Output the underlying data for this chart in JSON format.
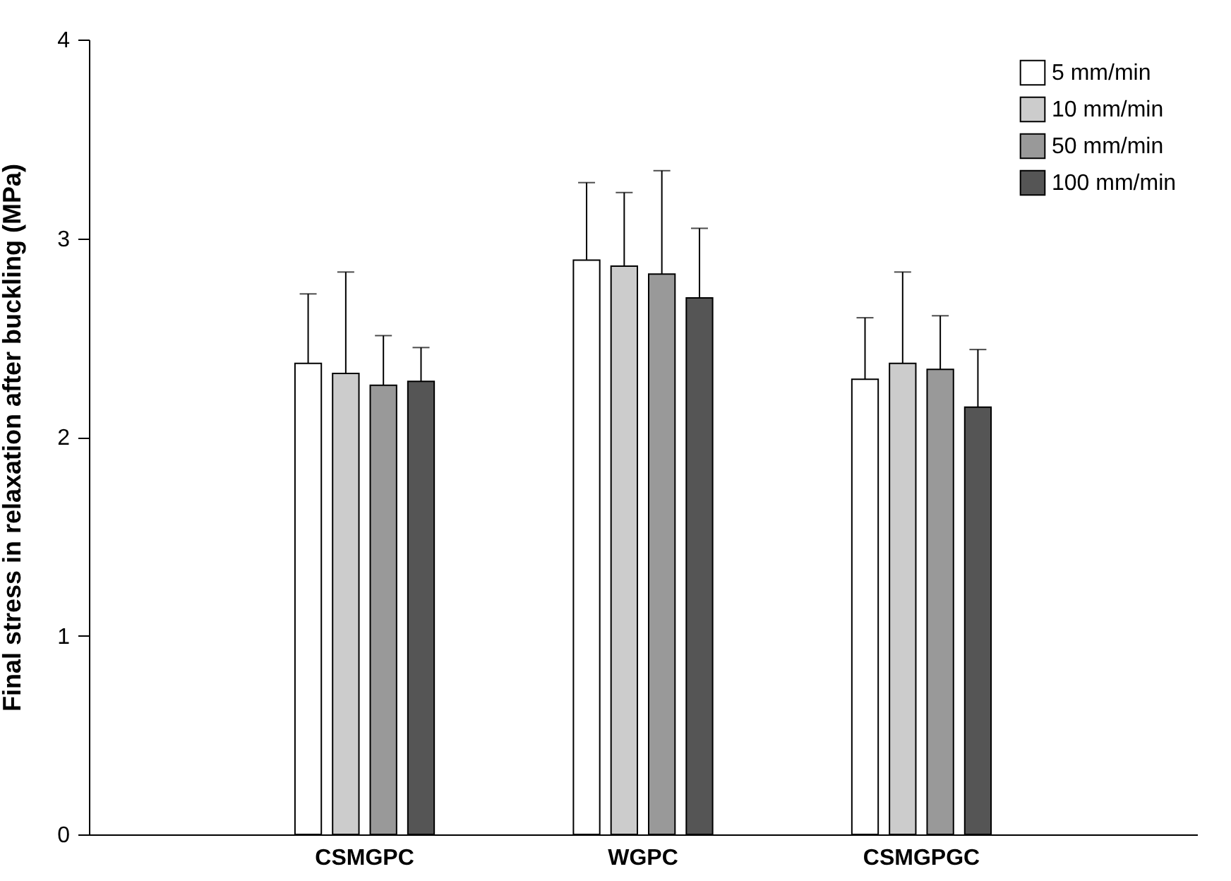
{
  "chart_data": {
    "type": "bar",
    "ylabel": "Final stress in relaxation after buckling (MPa)",
    "categories": [
      "CSMGPC",
      "WGPC",
      "CSMGPGC"
    ],
    "series": [
      {
        "name": "5 mm/min",
        "color": "#ffffff",
        "values": [
          2.37,
          2.89,
          2.29
        ],
        "errors": [
          [
            2.37,
            2.72
          ],
          [
            2.89,
            3.28
          ],
          [
            2.29,
            2.6
          ]
        ]
      },
      {
        "name": "10 mm/min",
        "color": "#cccccc",
        "values": [
          2.32,
          2.86,
          2.37
        ],
        "errors": [
          [
            2.32,
            2.83
          ],
          [
            2.86,
            3.23
          ],
          [
            2.37,
            2.83
          ]
        ]
      },
      {
        "name": "50 mm/min",
        "color": "#999999",
        "values": [
          2.26,
          2.82,
          2.34
        ],
        "errors": [
          [
            2.26,
            2.51
          ],
          [
            2.82,
            3.34
          ],
          [
            2.34,
            2.61
          ]
        ]
      },
      {
        "name": "100 mm/min",
        "color": "#555555",
        "values": [
          2.28,
          2.7,
          2.15
        ],
        "errors": [
          [
            2.28,
            2.45
          ],
          [
            2.7,
            3.05
          ],
          [
            2.15,
            2.44
          ]
        ]
      }
    ],
    "ylim": [
      0,
      4
    ],
    "yticks": [
      0,
      1,
      2,
      3,
      4
    ],
    "legend": "top right",
    "grid": false
  }
}
